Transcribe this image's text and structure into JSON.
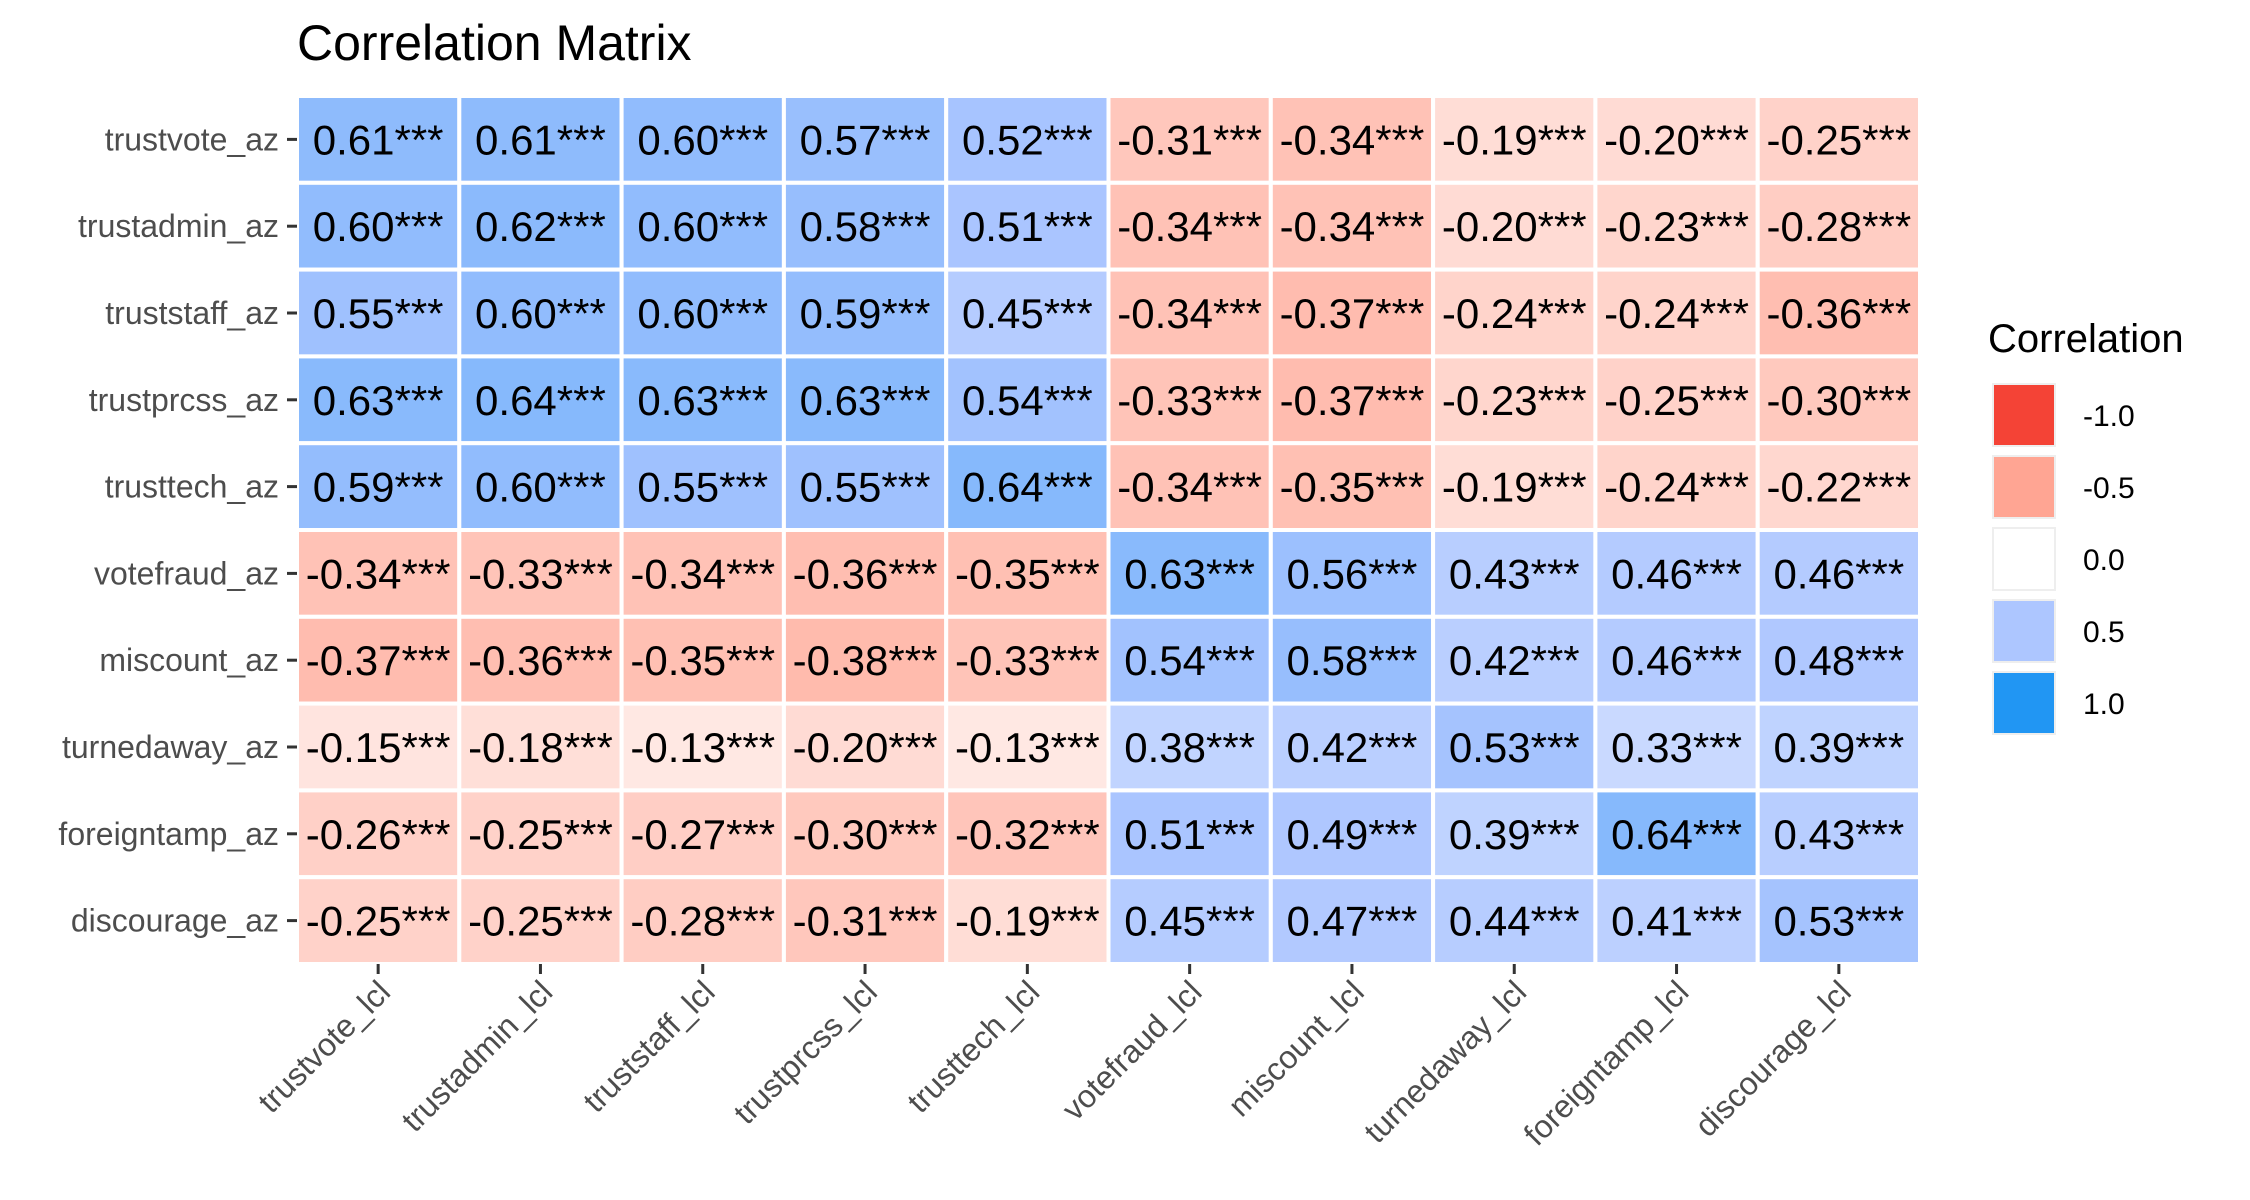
{
  "chart_data": {
    "type": "heatmap",
    "title": "Correlation Matrix",
    "rows": [
      "trustvote_az",
      "trustadmin_az",
      "truststaff_az",
      "trustprcss_az",
      "trusttech_az",
      "votefraud_az",
      "miscount_az",
      "turnedaway_az",
      "foreigntamp_az",
      "discourage_az"
    ],
    "columns": [
      "trustvote_lcl",
      "trustadmin_lcl",
      "truststaff_lcl",
      "trustprcss_lcl",
      "trusttech_lcl",
      "votefraud_lcl",
      "miscount_lcl",
      "turnedaway_lcl",
      "foreigntamp_lcl",
      "discourage_lcl"
    ],
    "values": [
      [
        0.61,
        0.61,
        0.6,
        0.57,
        0.52,
        -0.31,
        -0.34,
        -0.19,
        -0.2,
        -0.25
      ],
      [
        0.6,
        0.62,
        0.6,
        0.58,
        0.51,
        -0.34,
        -0.34,
        -0.2,
        -0.23,
        -0.28
      ],
      [
        0.55,
        0.6,
        0.6,
        0.59,
        0.45,
        -0.34,
        -0.37,
        -0.24,
        -0.24,
        -0.36
      ],
      [
        0.63,
        0.64,
        0.63,
        0.63,
        0.54,
        -0.33,
        -0.37,
        -0.23,
        -0.25,
        -0.3
      ],
      [
        0.59,
        0.6,
        0.55,
        0.55,
        0.64,
        -0.34,
        -0.35,
        -0.19,
        -0.24,
        -0.22
      ],
      [
        -0.34,
        -0.33,
        -0.34,
        -0.36,
        -0.35,
        0.63,
        0.56,
        0.43,
        0.46,
        0.46
      ],
      [
        -0.37,
        -0.36,
        -0.35,
        -0.38,
        -0.33,
        0.54,
        0.58,
        0.42,
        0.46,
        0.48
      ],
      [
        -0.15,
        -0.18,
        -0.13,
        -0.2,
        -0.13,
        0.38,
        0.42,
        0.53,
        0.33,
        0.39
      ],
      [
        -0.26,
        -0.25,
        -0.27,
        -0.3,
        -0.32,
        0.51,
        0.49,
        0.39,
        0.64,
        0.43
      ],
      [
        -0.25,
        -0.25,
        -0.28,
        -0.31,
        -0.19,
        0.45,
        0.47,
        0.44,
        0.41,
        0.53
      ]
    ],
    "labels": [
      [
        "0.61***",
        "0.61***",
        "0.60***",
        "0.57***",
        "0.52***",
        "-0.31***",
        "-0.34***",
        "-0.19***",
        "-0.20***",
        "-0.25***"
      ],
      [
        "0.60***",
        "0.62***",
        "0.60***",
        "0.58***",
        "0.51***",
        "-0.34***",
        "-0.34***",
        "-0.20***",
        "-0.23***",
        "-0.28***"
      ],
      [
        "0.55***",
        "0.60***",
        "0.60***",
        "0.59***",
        "0.45***",
        "-0.34***",
        "-0.37***",
        "-0.24***",
        "-0.24***",
        "-0.36***"
      ],
      [
        "0.63***",
        "0.64***",
        "0.63***",
        "0.63***",
        "0.54***",
        "-0.33***",
        "-0.37***",
        "-0.23***",
        "-0.25***",
        "-0.30***"
      ],
      [
        "0.59***",
        "0.60***",
        "0.55***",
        "0.55***",
        "0.64***",
        "-0.34***",
        "-0.35***",
        "-0.19***",
        "-0.24***",
        "-0.22***"
      ],
      [
        "-0.34***",
        "-0.33***",
        "-0.34***",
        "-0.36***",
        "-0.35***",
        "0.63***",
        "0.56***",
        "0.43***",
        "0.46***",
        "0.46***"
      ],
      [
        "-0.37***",
        "-0.36***",
        "-0.35***",
        "-0.38***",
        "-0.33***",
        "0.54***",
        "0.58***",
        "0.42***",
        "0.46***",
        "0.48***"
      ],
      [
        "-0.15***",
        "-0.18***",
        "-0.13***",
        "-0.20***",
        "-0.13***",
        "0.38***",
        "0.42***",
        "0.53***",
        "0.33***",
        "0.39***"
      ],
      [
        "-0.26***",
        "-0.25***",
        "-0.27***",
        "-0.30***",
        "-0.32***",
        "0.51***",
        "0.49***",
        "0.39***",
        "0.64***",
        "0.43***"
      ],
      [
        "-0.25***",
        "-0.25***",
        "-0.28***",
        "-0.31***",
        "-0.19***",
        "0.45***",
        "0.47***",
        "0.44***",
        "0.41***",
        "0.53***"
      ]
    ],
    "legend": {
      "title": "Correlation",
      "items": [
        {
          "label": "-1.0",
          "value": -1.0,
          "color": "#f44336"
        },
        {
          "label": "-0.5",
          "value": -0.5,
          "color": "#ffa593"
        },
        {
          "label": "0.0",
          "value": 0.0,
          "color": "#ffffff"
        },
        {
          "label": "0.5",
          "value": 0.5,
          "color": "#adc6ff"
        },
        {
          "label": "1.0",
          "value": 1.0,
          "color": "#2196f3"
        }
      ]
    },
    "grid": false,
    "legend_position": "right"
  }
}
